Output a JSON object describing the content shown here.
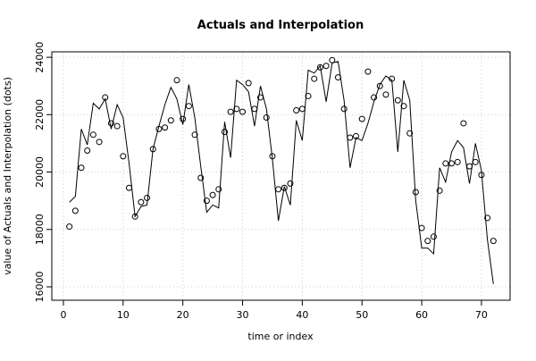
{
  "chart_data": {
    "type": "line",
    "title": "Actuals and Interpolation",
    "x_label": "time or index",
    "y_label": "value of Actuals and Interpolation (dots)",
    "x": [
      1,
      2,
      3,
      4,
      5,
      6,
      7,
      8,
      9,
      10,
      11,
      12,
      13,
      14,
      15,
      16,
      17,
      18,
      19,
      20,
      21,
      22,
      23,
      24,
      25,
      26,
      27,
      28,
      29,
      30,
      31,
      32,
      33,
      34,
      35,
      36,
      37,
      38,
      39,
      40,
      41,
      42,
      43,
      44,
      45,
      46,
      47,
      48,
      49,
      50,
      51,
      52,
      53,
      54,
      55,
      56,
      57,
      58,
      59,
      60,
      61,
      62,
      63,
      64,
      65,
      66,
      67,
      68,
      69,
      70,
      71,
      72
    ],
    "series": [
      {
        "style": "points",
        "color": "#000000",
        "values": [
          18100,
          18650,
          20150,
          20750,
          21300,
          21050,
          22600,
          21700,
          21600,
          20550,
          19450,
          18450,
          18950,
          19100,
          20800,
          21500,
          21550,
          21800,
          23200,
          21850,
          22300,
          21300,
          19800,
          19000,
          19200,
          19400,
          21400,
          22100,
          22200,
          22100,
          23100,
          22200,
          22600,
          21900,
          20550,
          19400,
          19450,
          19600,
          22150,
          22200,
          22650,
          23250,
          23650,
          23700,
          23900,
          23300,
          22200,
          21200,
          21250,
          21850,
          23500,
          22600,
          23000,
          22700,
          23250,
          22500,
          22300,
          21350,
          19300,
          18050,
          17600,
          17750,
          19350,
          20300,
          20300,
          20350,
          21700,
          20200,
          20350,
          19900,
          18400,
          17600
        ]
      },
      {
        "style": "line",
        "color": "#000000",
        "values": [
          18950,
          19150,
          21500,
          20950,
          22400,
          22200,
          22550,
          21500,
          22350,
          21900,
          20300,
          18450,
          18800,
          18850,
          20800,
          21600,
          22350,
          22950,
          22550,
          21650,
          23050,
          21900,
          20200,
          18600,
          18850,
          18750,
          21750,
          20500,
          23200,
          23050,
          22800,
          21600,
          23000,
          22200,
          20450,
          18300,
          19500,
          18850,
          21800,
          21100,
          23550,
          23450,
          23700,
          22450,
          23800,
          23850,
          22500,
          20150,
          21200,
          21100,
          21700,
          22450,
          23050,
          23350,
          23200,
          20700,
          23200,
          22500,
          19000,
          17350,
          17350,
          17150,
          20150,
          19650,
          20700,
          21100,
          20850,
          19600,
          21000,
          20050,
          17650,
          16100
        ]
      }
    ],
    "xlim": [
      -1.94,
      74.8
    ],
    "ylim": [
      15533,
      24190
    ],
    "xticks": [
      0,
      10,
      20,
      30,
      40,
      50,
      60,
      70
    ],
    "yticks": [
      16000,
      18000,
      20000,
      22000,
      24000
    ],
    "grid": true
  }
}
